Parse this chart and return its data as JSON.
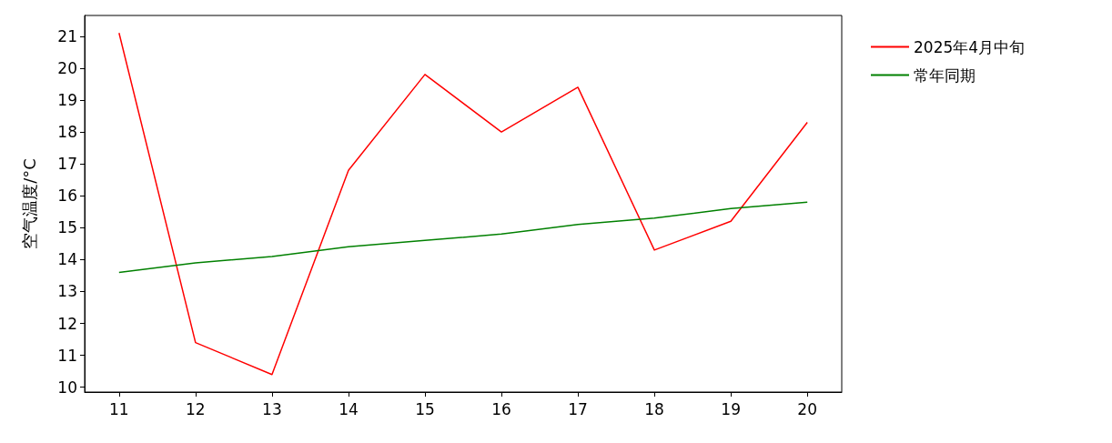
{
  "chart_data": {
    "type": "line",
    "ylabel": "空气温度/°C",
    "x": [
      11,
      12,
      13,
      14,
      15,
      16,
      17,
      18,
      19,
      20
    ],
    "series": [
      {
        "name": "2025年4月中旬",
        "color": "#ff0000",
        "values": [
          21.1,
          11.4,
          10.4,
          16.8,
          19.8,
          18.0,
          19.4,
          14.3,
          15.2,
          18.3
        ]
      },
      {
        "name": "常年同期",
        "color": "#008000",
        "values": [
          13.6,
          13.9,
          14.1,
          14.4,
          14.6,
          14.8,
          15.1,
          15.3,
          15.6,
          15.8
        ]
      }
    ],
    "xlim": [
      10.55,
      20.45
    ],
    "xticks": [
      11,
      12,
      13,
      14,
      15,
      16,
      17,
      18,
      19,
      20
    ],
    "ylim": [
      9.85,
      21.65
    ],
    "yticks": [
      10,
      11,
      12,
      13,
      14,
      15,
      16,
      17,
      18,
      19,
      20,
      21
    ],
    "grid": false,
    "legend": "top right",
    "marker": "none",
    "line_style": "solid"
  }
}
